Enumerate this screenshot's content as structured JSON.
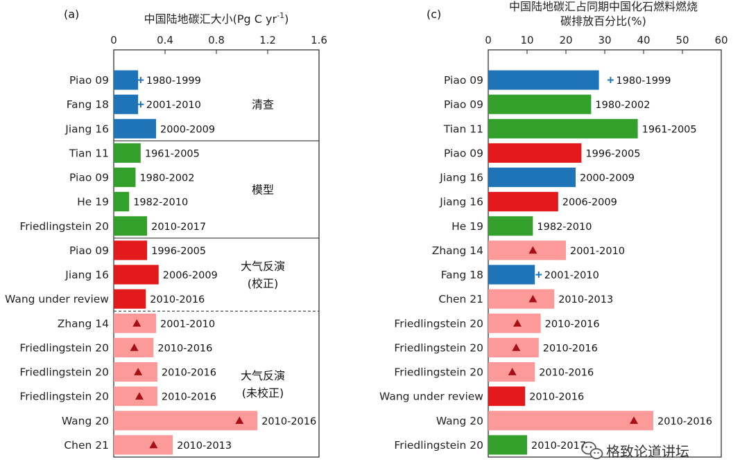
{
  "colors": {
    "inventory": "#1f73b7",
    "model": "#33a02c",
    "inversion_corrected": "#e31a1c",
    "inversion_uncorrected": "#fb9a99",
    "marker_plus": "#1f73b7",
    "marker_triangle": "#a50f15"
  },
  "watermark": {
    "icon": "wechat-icon",
    "text": "格致论道讲坛"
  },
  "chart_data": [
    {
      "panel": "(a)",
      "type": "bar",
      "orientation": "horizontal",
      "title": "中国陆地碳汇大小(Pg C yr",
      "title_sup": "-1",
      "title_close": ")",
      "xlim": [
        0,
        1.6
      ],
      "xticks": [
        "0",
        "0.4",
        "0.8",
        "1.2",
        "1.6"
      ],
      "xtick_values": [
        0,
        0.4,
        0.8,
        1.2,
        1.6
      ],
      "groups": [
        {
          "label_lines": [
            "清查"
          ],
          "rows": [
            0,
            2
          ],
          "separator_after": "solid"
        },
        {
          "label_lines": [
            "模型"
          ],
          "rows": [
            3,
            6
          ],
          "separator_after": "solid"
        },
        {
          "label_lines": [
            "大气反演",
            "(校正)"
          ],
          "rows": [
            7,
            9
          ],
          "separator_after": "dashed"
        },
        {
          "label_lines": [
            "大气反演",
            "(未校正)"
          ],
          "rows": [
            10,
            15
          ],
          "separator_after": "none"
        }
      ],
      "bars": [
        {
          "label": "Piao 09",
          "value": 0.19,
          "kind": "inventory",
          "marker": "plus",
          "marker_value": 0.21,
          "period": "1980-1999"
        },
        {
          "label": "Fang 18",
          "value": 0.19,
          "kind": "inventory",
          "marker": "plus",
          "marker_value": 0.21,
          "period": "2001-2010"
        },
        {
          "label": "Jiang 16",
          "value": 0.33,
          "kind": "inventory",
          "marker": "",
          "marker_value": null,
          "period": "2000-2009"
        },
        {
          "label": "Tian 11",
          "value": 0.21,
          "kind": "model",
          "marker": "",
          "marker_value": null,
          "period": "1961-2005"
        },
        {
          "label": "Piao 09",
          "value": 0.17,
          "kind": "model",
          "marker": "",
          "marker_value": null,
          "period": "1980-2002"
        },
        {
          "label": "He 19",
          "value": 0.12,
          "kind": "model",
          "marker": "",
          "marker_value": null,
          "period": "1982-2010"
        },
        {
          "label": "Friedlingstein 20",
          "value": 0.26,
          "kind": "model",
          "marker": "",
          "marker_value": null,
          "period": "2010-2017"
        },
        {
          "label": "Piao 09",
          "value": 0.26,
          "kind": "inversion_corrected",
          "marker": "",
          "marker_value": null,
          "period": "1996-2005"
        },
        {
          "label": "Jiang 16",
          "value": 0.35,
          "kind": "inversion_corrected",
          "marker": "",
          "marker_value": null,
          "period": "2006-2009"
        },
        {
          "label": "Wang under review",
          "value": 0.25,
          "kind": "inversion_corrected",
          "marker": "",
          "marker_value": null,
          "period": "2010-2016"
        },
        {
          "label": "Zhang 14",
          "value": 0.33,
          "kind": "inversion_uncorrected",
          "marker": "triangle",
          "marker_value": 0.18,
          "period": "2001-2010"
        },
        {
          "label": "Friedlingstein 20",
          "value": 0.31,
          "kind": "inversion_uncorrected",
          "marker": "triangle",
          "marker_value": 0.16,
          "period": "2010-2016"
        },
        {
          "label": "Friedlingstein 20",
          "value": 0.34,
          "kind": "inversion_uncorrected",
          "marker": "triangle",
          "marker_value": 0.19,
          "period": "2010-2016"
        },
        {
          "label": "Friedlingstein 20",
          "value": 0.34,
          "kind": "inversion_uncorrected",
          "marker": "triangle",
          "marker_value": 0.2,
          "period": "2010-2016"
        },
        {
          "label": "Wang 20",
          "value": 1.12,
          "kind": "inversion_uncorrected",
          "marker": "triangle",
          "marker_value": 0.98,
          "period": "2010-2016"
        },
        {
          "label": "Chen 21",
          "value": 0.46,
          "kind": "inversion_uncorrected",
          "marker": "triangle",
          "marker_value": 0.31,
          "period": "2010-2013"
        }
      ]
    },
    {
      "panel": "(c)",
      "type": "bar",
      "orientation": "horizontal",
      "title_lines": [
        "中国陆地碳汇占同期中国化石燃料燃烧",
        "碳排放百分比(%)"
      ],
      "xlim": [
        0,
        60
      ],
      "xticks": [
        "0",
        "10",
        "20",
        "30",
        "40",
        "50",
        "60"
      ],
      "xtick_values": [
        0,
        10,
        20,
        30,
        40,
        50,
        60
      ],
      "bars": [
        {
          "label": "Piao 09",
          "value": 28.5,
          "kind": "inventory",
          "marker": "plus",
          "marker_value": 31.5,
          "period": "1980-1999"
        },
        {
          "label": "Piao 09",
          "value": 26.5,
          "kind": "model",
          "marker": "",
          "marker_value": null,
          "period": "1980-2002"
        },
        {
          "label": "Tian 11",
          "value": 38.5,
          "kind": "model",
          "marker": "",
          "marker_value": null,
          "period": "1961-2005"
        },
        {
          "label": "Piao 09",
          "value": 24.0,
          "kind": "inversion_corrected",
          "marker": "",
          "marker_value": null,
          "period": "1996-2005"
        },
        {
          "label": "Jiang 16",
          "value": 22.5,
          "kind": "inventory",
          "marker": "",
          "marker_value": null,
          "period": "2000-2009"
        },
        {
          "label": "Jiang 16",
          "value": 18.0,
          "kind": "inversion_corrected",
          "marker": "",
          "marker_value": null,
          "period": "2006-2009"
        },
        {
          "label": "He 19",
          "value": 11.5,
          "kind": "model",
          "marker": "",
          "marker_value": null,
          "period": "1982-2010"
        },
        {
          "label": "Zhang 14",
          "value": 20.0,
          "kind": "inversion_uncorrected",
          "marker": "triangle",
          "marker_value": 11.5,
          "period": "2001-2010"
        },
        {
          "label": "Fang 18",
          "value": 12.0,
          "kind": "inventory",
          "marker": "plus",
          "marker_value": 13.0,
          "period": "2001-2010"
        },
        {
          "label": "Chen 21",
          "value": 17.0,
          "kind": "inversion_uncorrected",
          "marker": "triangle",
          "marker_value": 11.5,
          "period": "2010-2013"
        },
        {
          "label": "Friedlingstein 20",
          "value": 13.5,
          "kind": "inversion_uncorrected",
          "marker": "triangle",
          "marker_value": 7.5,
          "period": "2010-2016"
        },
        {
          "label": "Friedlingstein 20",
          "value": 13.0,
          "kind": "inversion_uncorrected",
          "marker": "triangle",
          "marker_value": 7.2,
          "period": "2010-2016"
        },
        {
          "label": "Friedlingstein 20",
          "value": 12.0,
          "kind": "inversion_uncorrected",
          "marker": "triangle",
          "marker_value": 6.2,
          "period": "2010-2016"
        },
        {
          "label": "Wang under review",
          "value": 9.5,
          "kind": "inversion_corrected",
          "marker": "",
          "marker_value": null,
          "period": "2010-2016"
        },
        {
          "label": "Wang 20",
          "value": 42.5,
          "kind": "inversion_uncorrected",
          "marker": "triangle",
          "marker_value": 37.5,
          "period": "2010-2016"
        },
        {
          "label": "Friedlingstein 20",
          "value": 10.0,
          "kind": "model",
          "marker": "",
          "marker_value": null,
          "period": "2010-2017"
        }
      ]
    }
  ]
}
